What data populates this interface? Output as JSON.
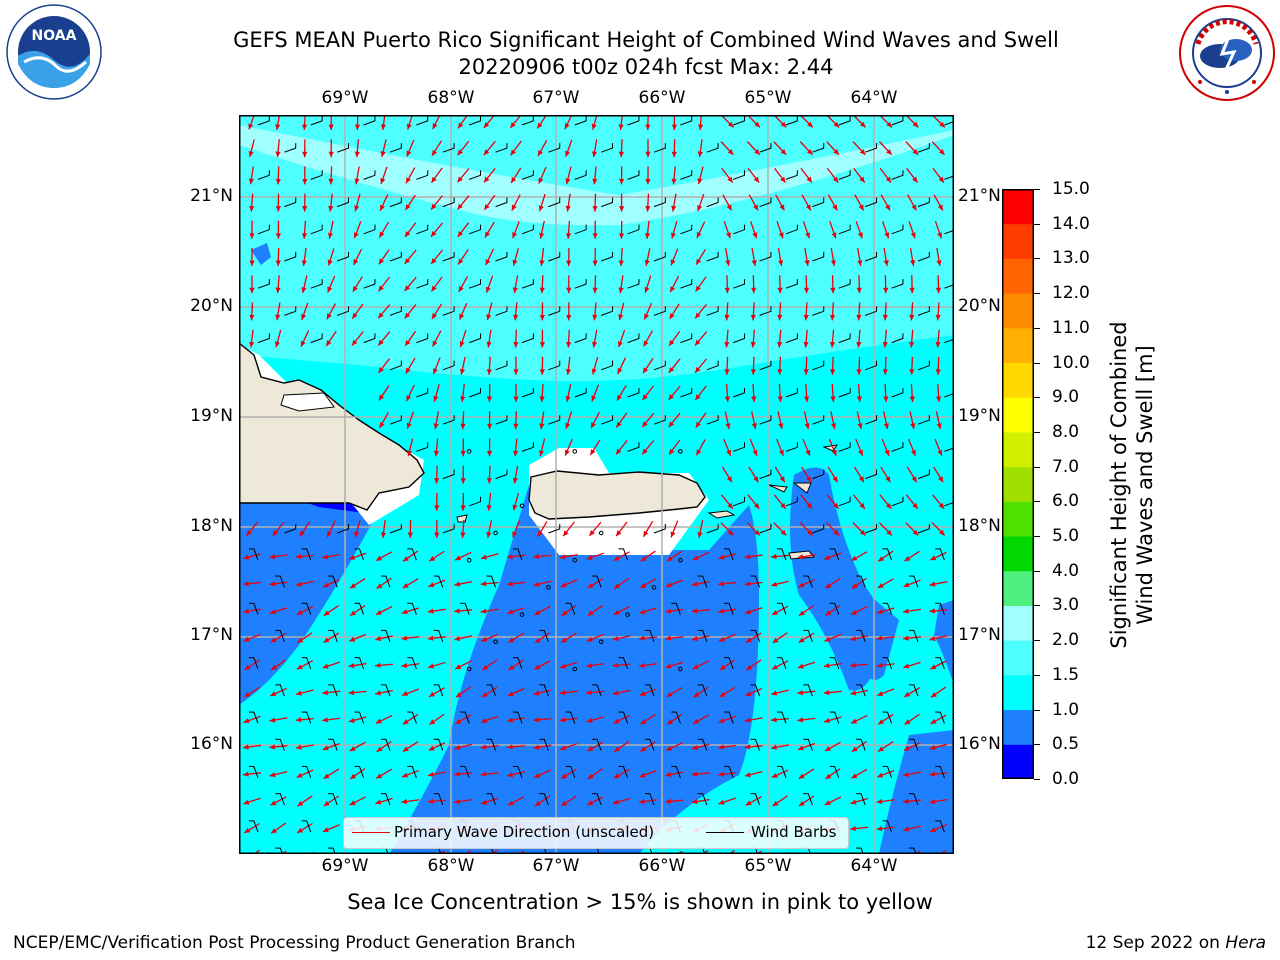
{
  "header": {
    "title_line1": "GEFS MEAN Puerto Rico Significant Height of Combined Wind Waves and Swell",
    "title_line2": "20220906 t00z 024h fcst   Max: 2.44"
  },
  "logos": {
    "noaa": {
      "text": "NOAA",
      "ring_top": "NATIONAL OCEANIC AND ATMOSPHERIC ADMINISTRATION",
      "ring_bottom": "U.S. DEPARTMENT OF COMMERCE"
    },
    "nws": {
      "ring": "NATIONAL WEATHER SERVICE"
    }
  },
  "map": {
    "lon_labels": [
      "69°W",
      "68°W",
      "67°W",
      "66°W",
      "65°W",
      "64°W"
    ],
    "lat_labels": [
      "21°N",
      "20°N",
      "19°N",
      "18°N",
      "17°N",
      "16°N"
    ],
    "land_color": "#ede8d8",
    "wave_arrow_color": "#e8000b",
    "wind_barb_color": "#000000"
  },
  "legend": {
    "primary_wave": "Primary Wave Direction (unscaled)",
    "wind_barbs": "Wind Barbs"
  },
  "colorbar": {
    "label_line1": "Significant Height of Combined",
    "label_line2": "Wind Waves and Swell [m]",
    "ticks": [
      "0.0",
      "0.5",
      "1.0",
      "1.5",
      "2.0",
      "3.0",
      "4.0",
      "5.0",
      "6.0",
      "7.0",
      "8.0",
      "9.0",
      "10.0",
      "11.0",
      "12.0",
      "13.0",
      "14.0",
      "15.0"
    ],
    "colors": [
      "#0000ff",
      "#1e80ff",
      "#00ffff",
      "#4dffff",
      "#a0ffff",
      "#50f080",
      "#00d800",
      "#50e000",
      "#a0e000",
      "#d0f000",
      "#ffff00",
      "#ffd800",
      "#ffb000",
      "#ff8c00",
      "#ff6400",
      "#ff3c00",
      "#ff0000"
    ]
  },
  "notes": {
    "sea_ice": "Sea Ice Concentration > 15% is shown in pink to yellow"
  },
  "footer": {
    "left": "NCEP/EMC/Verification Post Processing Product Generation Branch",
    "right_date": "12 Sep 2022 on ",
    "right_host": "Hera"
  }
}
